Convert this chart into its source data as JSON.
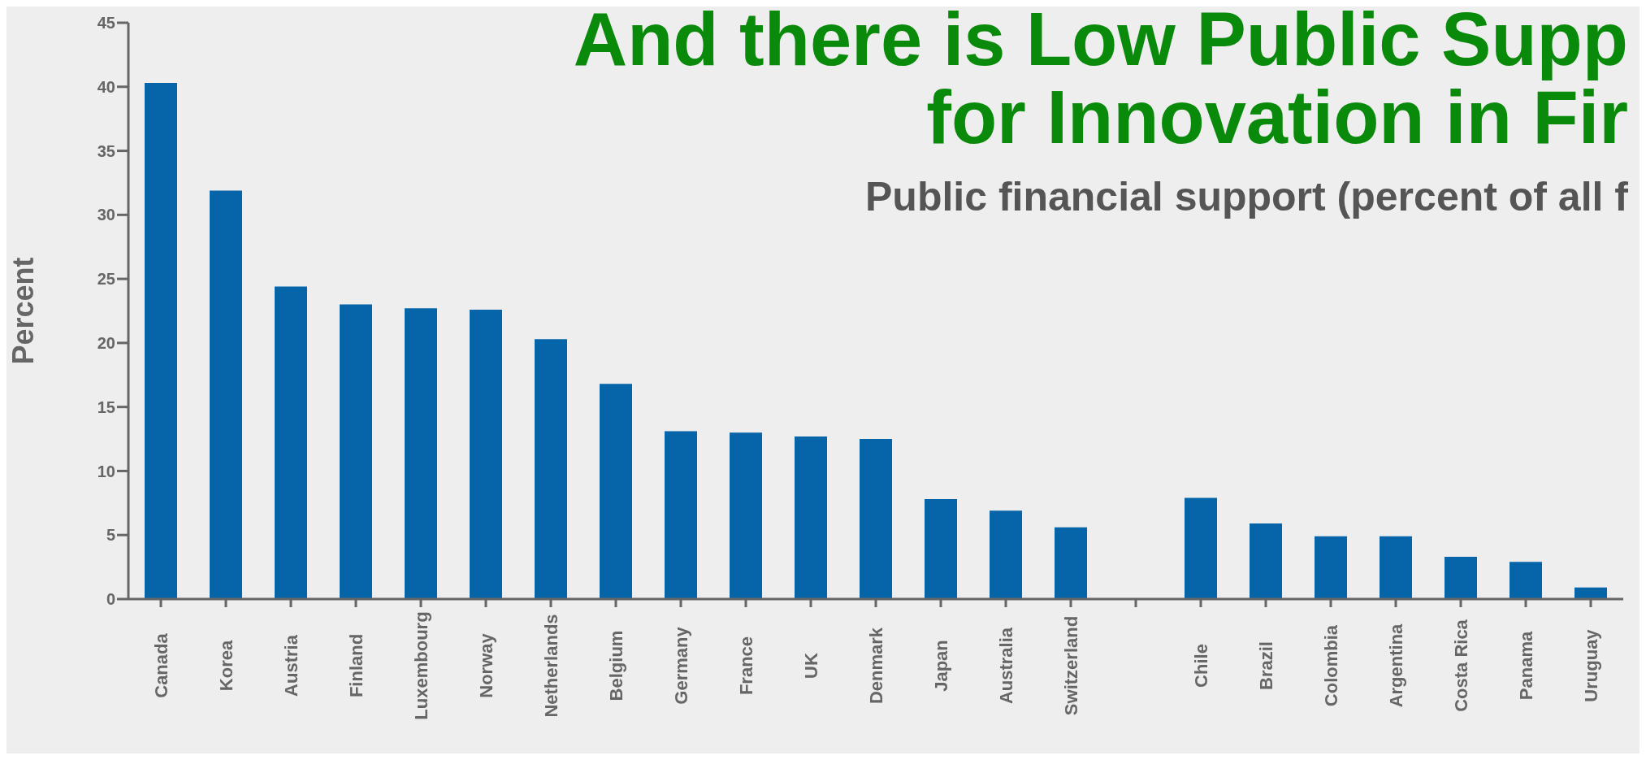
{
  "chart_data": {
    "type": "bar",
    "title": "And there is Low Public Supp\nfor Innovation in Fir",
    "subtitle": "Public financial support (percent of all f",
    "ylabel": "Percent",
    "categories": [
      "Canada",
      "Korea",
      "Austria",
      "Finland",
      "Luxembourg",
      "Norway",
      "Netherlands",
      "Belgium",
      "Germany",
      "France",
      "UK",
      "Denmark",
      "Japan",
      "Australia",
      "Switzerland",
      null,
      "Chile",
      "Brazil",
      "Colombia",
      "Argentina",
      "Costa Rica",
      "Panama",
      "Uruguay"
    ],
    "values": [
      40.3,
      31.9,
      24.4,
      23.0,
      22.7,
      22.6,
      20.3,
      16.8,
      13.1,
      13.0,
      12.7,
      12.5,
      7.8,
      6.9,
      5.6,
      null,
      7.9,
      5.9,
      4.9,
      4.9,
      3.3,
      2.9,
      0.9
    ],
    "color": "#0565a8",
    "ylim": [
      0,
      45
    ],
    "yticks": [
      0,
      5,
      10,
      15,
      20,
      25,
      30,
      35,
      40,
      45
    ],
    "grid": false,
    "legend": false
  }
}
